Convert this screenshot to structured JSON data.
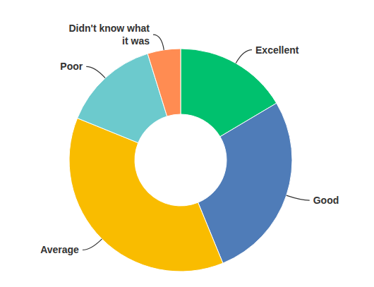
{
  "chart_data": {
    "type": "pie",
    "categories": [
      "Excellent",
      "Good",
      "Average",
      "Poor",
      "Didn't know what it was"
    ],
    "values": [
      16.5,
      27.4,
      37.4,
      14.1,
      4.8
    ],
    "colors": [
      "#00c16e",
      "#4f7cb8",
      "#f9bc00",
      "#6ccacd",
      "#ff8c52"
    ]
  }
}
